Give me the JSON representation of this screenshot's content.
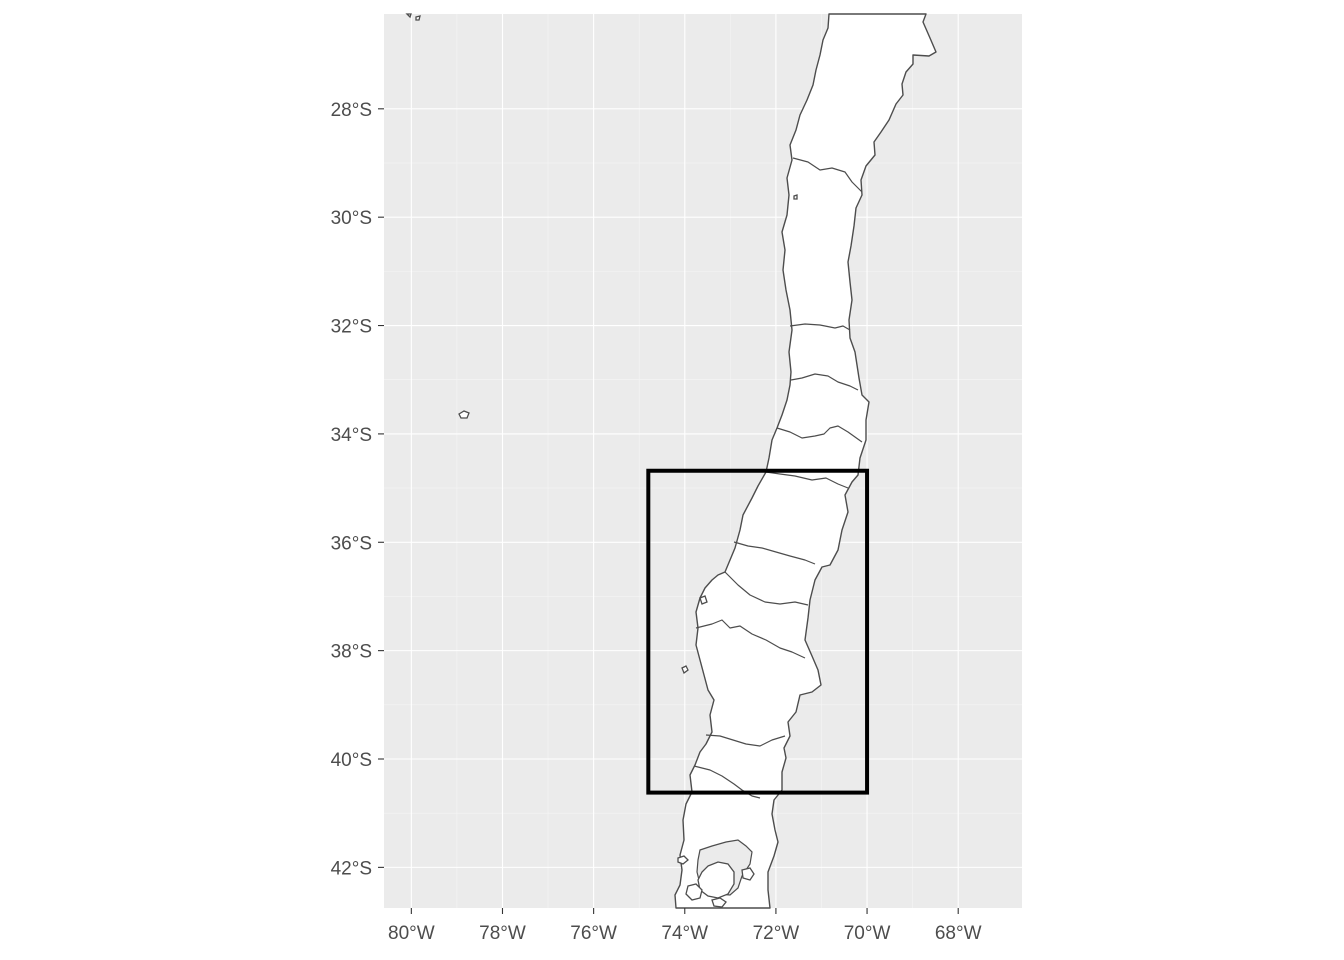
{
  "map": {
    "region": "Chile",
    "x_axis": {
      "unit": "longitude",
      "range": [
        -80.6,
        -66.6
      ],
      "ticks": [
        {
          "value": -80,
          "label": "80°W"
        },
        {
          "value": -78,
          "label": "78°W"
        },
        {
          "value": -76,
          "label": "76°W"
        },
        {
          "value": -74,
          "label": "74°W"
        },
        {
          "value": -72,
          "label": "72°W"
        },
        {
          "value": -70,
          "label": "70°W"
        },
        {
          "value": -68,
          "label": "68°W"
        }
      ]
    },
    "y_axis": {
      "unit": "latitude",
      "range": [
        -42.75,
        -26.25
      ],
      "ticks": [
        {
          "value": -28,
          "label": "28°S"
        },
        {
          "value": -30,
          "label": "30°S"
        },
        {
          "value": -32,
          "label": "32°S"
        },
        {
          "value": -34,
          "label": "34°S"
        },
        {
          "value": -36,
          "label": "36°S"
        },
        {
          "value": -38,
          "label": "38°S"
        },
        {
          "value": -40,
          "label": "40°S"
        },
        {
          "value": -42,
          "label": "42°S"
        }
      ]
    },
    "bounding_box": {
      "lon_min": -74.8,
      "lon_max": -70.0,
      "lat_min": -40.62,
      "lat_max": -34.68,
      "color": "#000000"
    },
    "colors": {
      "panel": "#ebebeb",
      "gridline": "#ffffff",
      "land_fill": "#ffffff",
      "border": "#4d4d4d"
    }
  }
}
